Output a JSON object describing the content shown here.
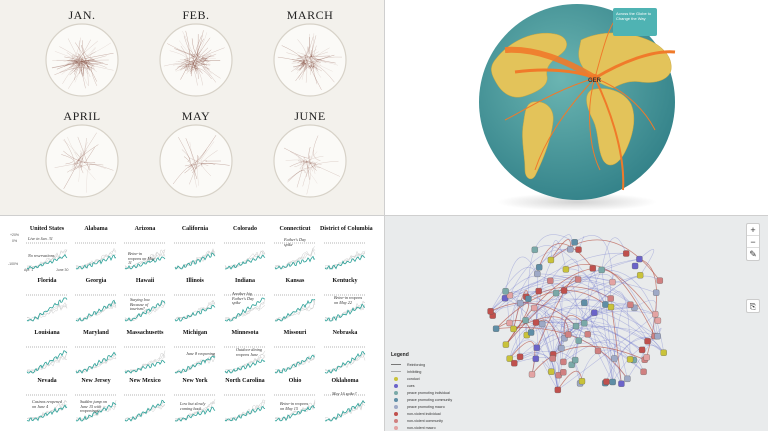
{
  "months": {
    "labels": [
      "JAN.",
      "FEB.",
      "MARCH",
      "APRIL",
      "MAY",
      "JUNE"
    ]
  },
  "globe": {
    "country_label": "GER",
    "callout_text": "Across the Globe to Change the Way",
    "colors": {
      "ocean": "#3f8f93",
      "land": "#e3c35a",
      "flow": "#f07a2a"
    }
  },
  "states": {
    "names": [
      "United States",
      "Alabama",
      "Arizona",
      "California",
      "Colorado",
      "Connecticut",
      "District of Columbia",
      "Florida",
      "Georgia",
      "Hawaii",
      "Illinois",
      "Indiana",
      "Kansas",
      "Kentucky",
      "Louisiana",
      "Maryland",
      "Massachusetts",
      "Michigan",
      "Minnesota",
      "Missouri",
      "Nebraska",
      "Nevada",
      "New Jersey",
      "New Mexico",
      "New York",
      "North Carolina",
      "Ohio",
      "Oklahoma"
    ],
    "notes": {
      "us1": "Live in Jan. 31",
      "us2": "No reservations",
      "arizona": "Brine-in reopens on May 11",
      "connecticut": "Father's Day spike",
      "hawaii": "Staying low. Because of tourism?",
      "indiana": "Another big Father's Day spike",
      "kentucky": "Brine-in reopens on May 22",
      "michigan": "June 8 reopening",
      "minnesota": "Outdoor dining reopens June",
      "nevada": "Casinos reopened on June 4",
      "newjersey": "Sudden jump on June 15 with reopenings",
      "newyork": "Low but slowly coming back",
      "ohio": "Brine-in reopens on May 15",
      "oklahoma": "May 16 spike?"
    },
    "axis": {
      "y_top": "+20%",
      "y_zero": "0%",
      "y_bottom": "-100%",
      "x_start": "Apr. 1",
      "x_end": "June 30"
    },
    "colors": {
      "series": "#2aa198",
      "ghost": "#cfcfcf"
    }
  },
  "network": {
    "legend_title": "Legend",
    "legend_items": [
      {
        "label": "Reinforcing",
        "kind": "line",
        "color": "#777777"
      },
      {
        "label": "Inhibiting",
        "kind": "line",
        "color": "#aaaaaa"
      },
      {
        "label": "conduct",
        "kind": "dot",
        "color": "#c9c23a"
      },
      {
        "label": "cues",
        "kind": "dot",
        "color": "#6b63c9"
      },
      {
        "label": "peace promoting individual",
        "kind": "dot",
        "color": "#7aa9a8"
      },
      {
        "label": "peace promoting community",
        "kind": "dot",
        "color": "#5f8ea6"
      },
      {
        "label": "peace promoting macro",
        "kind": "dot",
        "color": "#9ea9c6"
      },
      {
        "label": "non-violent individual",
        "kind": "dot",
        "color": "#c0504d"
      },
      {
        "label": "non-violent community",
        "kind": "dot",
        "color": "#d08080"
      },
      {
        "label": "non-violent macro",
        "kind": "dot",
        "color": "#e3a3a3"
      }
    ],
    "zoom_in": "+",
    "zoom_out": "−",
    "edit": "✎",
    "export": "⎘"
  }
}
